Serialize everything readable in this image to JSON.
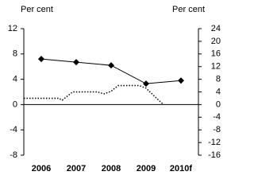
{
  "chart_data": {
    "type": "line",
    "y_label": "Per cent",
    "y2_label": "Per cent",
    "series": [
      {
        "x": [
          2006,
          2007,
          2008,
          2009,
          2010
        ],
        "values": [
          7.2,
          6.7,
          6.2,
          3.3,
          3.8
        ],
        "color": "#000000",
        "style": "solid",
        "marker": "diamond"
      },
      {
        "x": [
          2005.5,
          2006.5,
          2006.6,
          2006.9,
          2007.6,
          2007.8,
          2008,
          2008.2,
          2008.8,
          2009,
          2009.3,
          2009.5
        ],
        "values": [
          2,
          2,
          1.4,
          4,
          4,
          3.4,
          4.2,
          6,
          6,
          5.2,
          2,
          0
        ],
        "color": "#000000",
        "style": "dotted",
        "axis": "y2"
      }
    ],
    "xlim": [
      2005.5,
      2010.5
    ],
    "xticks": [
      2006,
      2007,
      2008,
      2009,
      {
        "value": 2010,
        "label": "2010f"
      }
    ],
    "ylim": [
      -8,
      12
    ],
    "yticks": [
      -8,
      -4,
      0,
      4,
      8,
      12
    ],
    "y2lim": [
      -16,
      24
    ],
    "y2ticks": [
      -16,
      -12,
      -8,
      -4,
      0,
      4,
      8,
      12,
      16,
      20,
      24
    ]
  }
}
